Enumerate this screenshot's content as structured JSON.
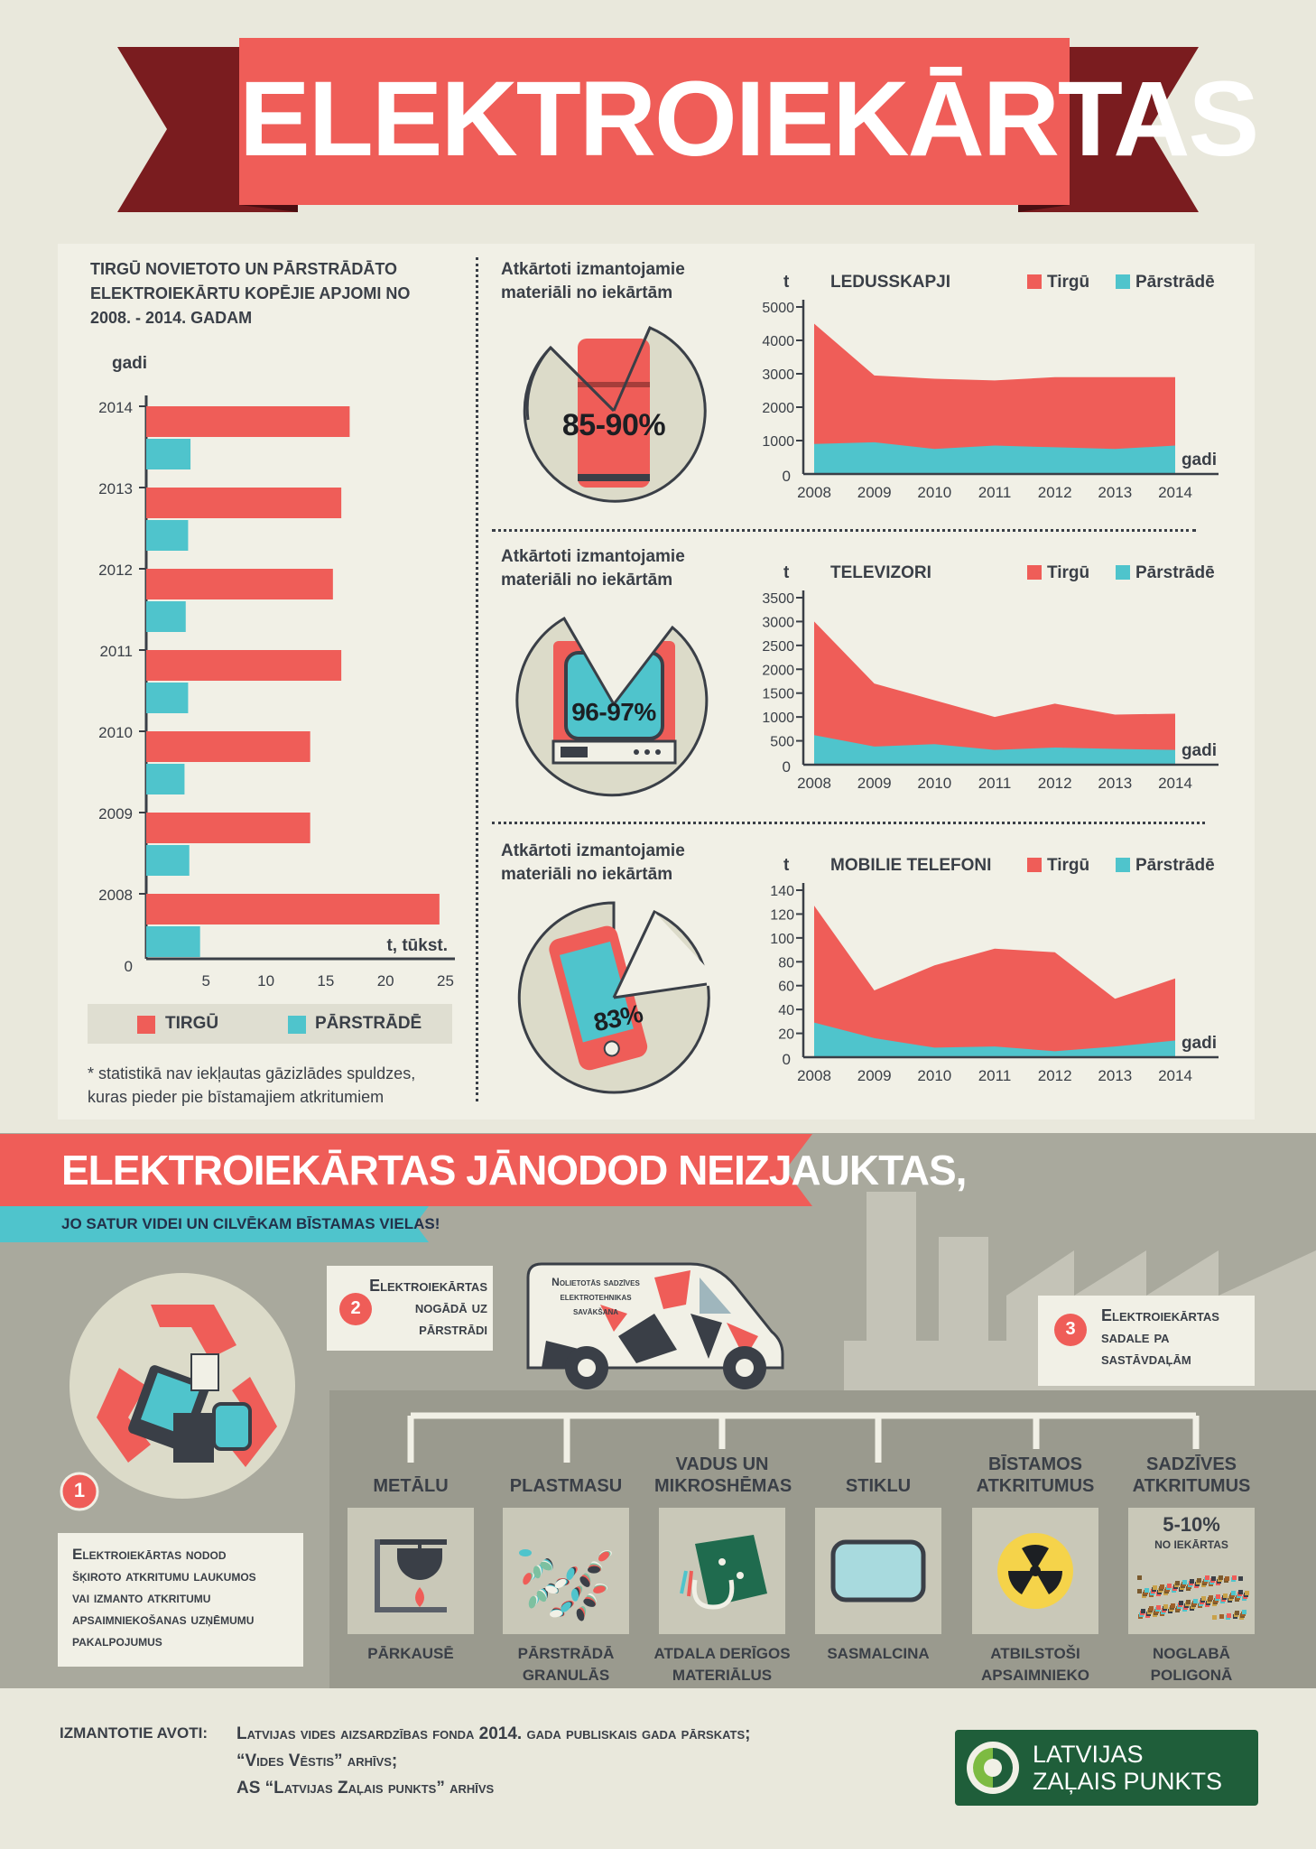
{
  "title": "ELEKTROIEKĀRTAS",
  "colors": {
    "red": "#ef5d58",
    "teal": "#4fc4cc",
    "dark_red": "#7a1c1f",
    "grey_bg": "#a9a99d",
    "panel": "#f1f0e6",
    "text": "#3a3f47",
    "green": "#1f5e3a"
  },
  "bar_chart": {
    "title_lines": [
      "TIRGŪ NOVIETOTO UN PĀRSTRĀDĀTO",
      "ELEKTROIEKĀRTU KOPĒJIE APJOMI NO",
      "2008. - 2014. GADAM"
    ],
    "ylabel": "gadi",
    "xlabel": "t, tūkst.",
    "zero_label": "0",
    "legend": {
      "tirgu": "TIRGŪ",
      "parstrade": "PĀRSTRĀDĒ"
    },
    "footnote_lines": [
      "* statistikā nav iekļautas gāzizlādes spuldzes,",
      "kuras pieder pie bīstamajiem atkritumiem"
    ]
  },
  "reuse_label_lines": [
    "Atkārtoti izmantojamie",
    "materiāli no iekārtām"
  ],
  "pies": [
    {
      "label": "85-90%",
      "icon": "fridge-icon"
    },
    {
      "label": "96-97%",
      "icon": "tv-icon"
    },
    {
      "label": "83%",
      "icon": "phone-icon"
    }
  ],
  "area_legend": {
    "tirgu": "Tirgū",
    "parstrade": "Pārstrādē"
  },
  "area_unit": "t",
  "area_xlabel": "gadi",
  "chart_data": [
    {
      "type": "bar",
      "orientation": "horizontal",
      "categories": [
        "2014",
        "2013",
        "2012",
        "2011",
        "2010",
        "2009",
        "2008"
      ],
      "series": [
        {
          "name": "TIRGŪ",
          "values": [
            17,
            16.3,
            15.6,
            16.3,
            13.7,
            13.7,
            24.5
          ]
        },
        {
          "name": "PĀRSTRĀDĒ",
          "values": [
            3.7,
            3.5,
            3.3,
            3.5,
            3.2,
            3.6,
            4.5
          ]
        }
      ],
      "xticks": [
        5,
        10,
        15,
        20,
        25
      ],
      "xlim": [
        0,
        27
      ]
    },
    {
      "type": "area",
      "title": "LEDUSSKAPJI",
      "x": [
        "2008",
        "2009",
        "2010",
        "2011",
        "2012",
        "2013",
        "2014"
      ],
      "series": [
        {
          "name": "Tirgū",
          "values": [
            4500,
            2950,
            2850,
            2800,
            2900,
            2900,
            2900
          ]
        },
        {
          "name": "Pārstrādē",
          "values": [
            900,
            950,
            750,
            850,
            800,
            750,
            850
          ]
        }
      ],
      "yticks": [
        1000,
        2000,
        3000,
        4000,
        5000
      ],
      "ylim": [
        0,
        5000
      ]
    },
    {
      "type": "area",
      "title": "TELEVIZORI",
      "x": [
        "2008",
        "2009",
        "2010",
        "2011",
        "2012",
        "2013",
        "2014"
      ],
      "series": [
        {
          "name": "Tirgū",
          "values": [
            3000,
            1700,
            1350,
            1000,
            1280,
            1050,
            1070
          ]
        },
        {
          "name": "Pārstrādē",
          "values": [
            620,
            380,
            430,
            310,
            360,
            330,
            310
          ]
        }
      ],
      "yticks": [
        500,
        1000,
        1500,
        2000,
        2500,
        3000,
        3500
      ],
      "ylim": [
        0,
        3500
      ]
    },
    {
      "type": "area",
      "title": "MOBILIE TELEFONI",
      "x": [
        "2008",
        "2009",
        "2010",
        "2011",
        "2012",
        "2013",
        "2014"
      ],
      "series": [
        {
          "name": "Tirgū",
          "values": [
            127,
            56,
            77,
            91,
            88,
            49,
            66
          ]
        },
        {
          "name": "Pārstrādē",
          "values": [
            29,
            16,
            8,
            9,
            5,
            9,
            14
          ]
        }
      ],
      "yticks": [
        20,
        40,
        60,
        80,
        100,
        120,
        140
      ],
      "ylim": [
        0,
        140
      ]
    }
  ],
  "banner": {
    "headline": "ELEKTROIEKĀRTAS JĀNODOD NEIZJAUKTAS,",
    "subline": "JO SATUR VIDEI UN CILVĒKAM BĪSTAMAS VIELAS!"
  },
  "steps": [
    {
      "num": "1",
      "lines": [
        "Elektroiekārtas nodod",
        "šķiroto atkritumu laukumos",
        "vai izmanto atkritumu",
        "apsaimniekošanas uzņēmumu",
        "pakalpojumus"
      ]
    },
    {
      "num": "2",
      "lines": [
        "Elektroiekārtas",
        "nogādā uz",
        "pārstrādi"
      ]
    },
    {
      "num": "3",
      "lines": [
        "Elektroiekārtas",
        "sadale pa",
        "sastāvdaļām"
      ]
    }
  ],
  "van_text_lines": [
    "Nolietotās sadzīves",
    "elektrotehnikas",
    "savākšana"
  ],
  "materials": [
    {
      "label_lines": [
        "METĀLU"
      ],
      "sub_lines": [
        "PĀRKAUSĒ"
      ],
      "icon": "furnace-icon"
    },
    {
      "label_lines": [
        "PLASTMASU"
      ],
      "sub_lines": [
        "PĀRSTRĀDĀ",
        "GRANULĀS"
      ],
      "icon": "plastic-granules-icon"
    },
    {
      "label_lines": [
        "VADUS UN",
        "MIKROSHĒMAS"
      ],
      "sub_lines": [
        "ATDALA DERĪGOS",
        "MATERIĀLUS"
      ],
      "icon": "circuit-board-icon"
    },
    {
      "label_lines": [
        "STIKLU"
      ],
      "sub_lines": [
        "SASMALCINA"
      ],
      "icon": "glass-screen-icon"
    },
    {
      "label_lines": [
        "BĪSTAMOS",
        "ATKRITUMUS"
      ],
      "sub_lines": [
        "ATBILSTOŠI",
        "APSAIMNIEKO"
      ],
      "icon": "radiation-icon"
    },
    {
      "label_lines": [
        "SADZĪVES",
        "ATKRITUMUS"
      ],
      "sub_lines": [
        "NOGLABĀ",
        "POLIGONĀ"
      ],
      "icon": "landfill-icon",
      "note": "5-10%",
      "note_sub": "NO IEKĀRTAS"
    }
  ],
  "sources": {
    "label": "IZMANTOTIE AVOTI:",
    "lines": [
      "Latvijas vides aizsardzības fonda 2014. gada publiskais gada pārskats;",
      "“Vides Vēstis” arhīvs;",
      "AS “Latvijas Zaļais punkts” arhīvs"
    ]
  },
  "logo": {
    "lines": [
      "LATVIJAS",
      "ZAĻAIS PUNKTS"
    ]
  }
}
